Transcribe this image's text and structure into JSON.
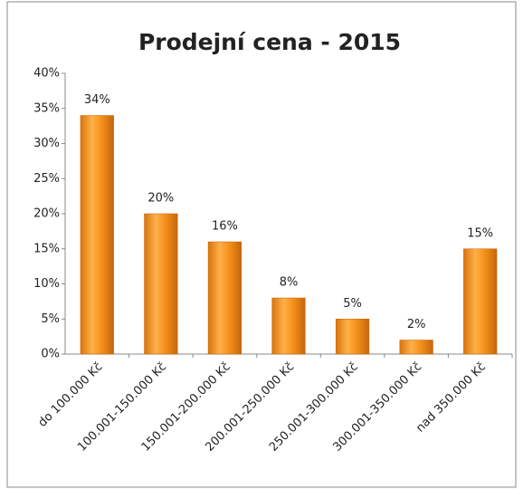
{
  "chart_data": {
    "type": "bar",
    "title": "Prodejní cena - 2015",
    "categories": [
      "do 100.000 Kč",
      "100.001-150.000 Kč",
      "150.001-200.000 Kč",
      "200.001-250.000 Kč",
      "250.001-300.000 Kč",
      "300.001-350.000 Kč",
      "nad 350.000 Kč"
    ],
    "values": [
      34,
      20,
      16,
      8,
      5,
      2,
      15
    ],
    "value_labels": [
      "34%",
      "20%",
      "16%",
      "8%",
      "5%",
      "2%",
      "15%"
    ],
    "color": "#f7941d",
    "ylim": [
      0,
      40
    ],
    "yticks": [
      {
        "value": 0,
        "label": "0%"
      },
      {
        "value": 5,
        "label": "5%"
      },
      {
        "value": 10,
        "label": "10%"
      },
      {
        "value": 15,
        "label": "15%"
      },
      {
        "value": 20,
        "label": "20%"
      },
      {
        "value": 25,
        "label": "25%"
      },
      {
        "value": 30,
        "label": "30%"
      },
      {
        "value": 35,
        "label": "35%"
      },
      {
        "value": 40,
        "label": "40%"
      }
    ],
    "grid": false
  }
}
